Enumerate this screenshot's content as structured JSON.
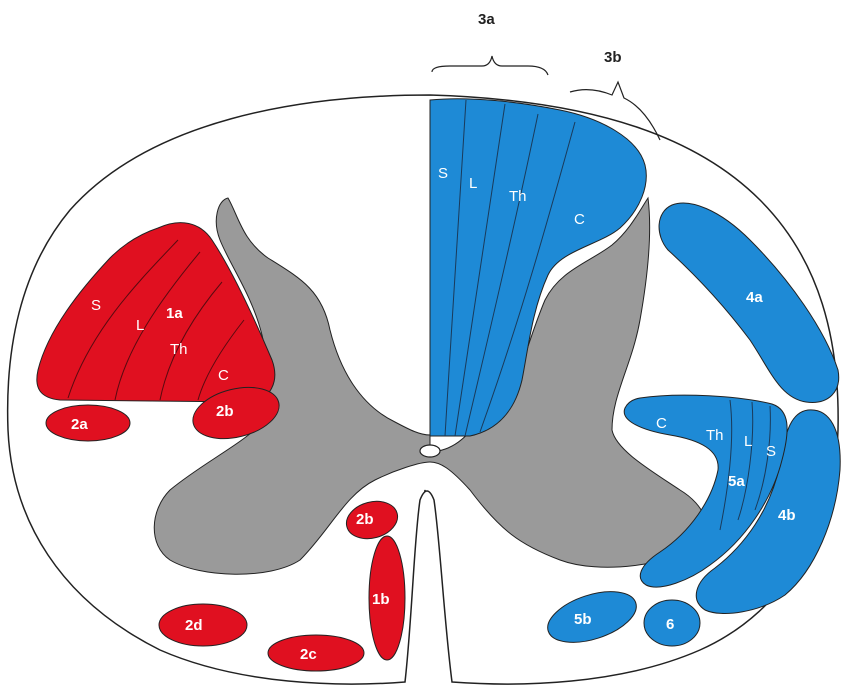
{
  "colors": {
    "motor_tract": "#e01020",
    "sensory_tract": "#1e8ad6",
    "grey_matter": "#9a9a9a",
    "outline": "#222222",
    "background": "#ffffff"
  },
  "labels": {
    "top_3a": "3a",
    "top_3b": "3b",
    "dorsal_S": "S",
    "dorsal_L": "L",
    "dorsal_Th": "Th",
    "dorsal_C": "C",
    "lat_S": "S",
    "lat_L": "L",
    "lat_1a": "1a",
    "lat_Th": "Th",
    "lat_C": "C",
    "t_2a": "2a",
    "t_2b_upper": "2b",
    "t_2b_lower": "2b",
    "t_1b": "1b",
    "t_2d": "2d",
    "t_2c": "2c",
    "t_4a": "4a",
    "t_4b": "4b",
    "st_C": "C",
    "st_Th": "Th",
    "st_L": "L",
    "st_S": "S",
    "t_5a": "5a",
    "t_5b": "5b",
    "t_6": "6"
  }
}
